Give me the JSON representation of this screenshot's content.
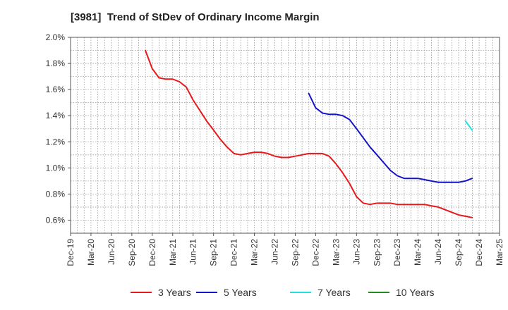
{
  "chart_data": {
    "type": "line",
    "title": "[3981]  Trend of StDev of Ordinary Income Margin",
    "xlabel": "",
    "ylabel": "",
    "categories": [
      "Dec-19",
      "Mar-20",
      "Jun-20",
      "Sep-20",
      "Dec-20",
      "Mar-21",
      "Jun-21",
      "Sep-21",
      "Dec-21",
      "Mar-22",
      "Jun-22",
      "Sep-22",
      "Dec-22",
      "Mar-23",
      "Jun-23",
      "Sep-23",
      "Dec-23",
      "Mar-24",
      "Jun-24",
      "Sep-24",
      "Dec-24",
      "Mar-25"
    ],
    "ylim": [
      0.5,
      2.0
    ],
    "yticks": [
      0.6,
      0.8,
      1.0,
      1.2,
      1.4,
      1.6,
      1.8,
      2.0
    ],
    "ytick_labels": [
      "0.6%",
      "0.8%",
      "1.0%",
      "1.2%",
      "1.4%",
      "1.6%",
      "1.8%",
      "2.0%"
    ],
    "grid": true,
    "legend_position": "bottom",
    "series": [
      {
        "name": "3 Years",
        "color": "#e8191c",
        "points": [
          [
            3.66,
            1.9
          ],
          [
            4.0,
            1.76
          ],
          [
            4.33,
            1.69
          ],
          [
            4.66,
            1.68
          ],
          [
            5.0,
            1.68
          ],
          [
            5.33,
            1.66
          ],
          [
            5.66,
            1.62
          ],
          [
            6.0,
            1.52
          ],
          [
            6.33,
            1.44
          ],
          [
            6.66,
            1.36
          ],
          [
            7.0,
            1.29
          ],
          [
            7.33,
            1.22
          ],
          [
            7.66,
            1.16
          ],
          [
            8.0,
            1.11
          ],
          [
            8.33,
            1.1
          ],
          [
            8.66,
            1.11
          ],
          [
            9.0,
            1.12
          ],
          [
            9.33,
            1.12
          ],
          [
            9.66,
            1.11
          ],
          [
            10.0,
            1.09
          ],
          [
            10.33,
            1.08
          ],
          [
            10.66,
            1.08
          ],
          [
            11.0,
            1.09
          ],
          [
            11.33,
            1.1
          ],
          [
            11.66,
            1.11
          ],
          [
            12.0,
            1.11
          ],
          [
            12.33,
            1.11
          ],
          [
            12.66,
            1.09
          ],
          [
            13.0,
            1.03
          ],
          [
            13.33,
            0.96
          ],
          [
            13.66,
            0.88
          ],
          [
            14.0,
            0.78
          ],
          [
            14.33,
            0.73
          ],
          [
            14.66,
            0.72
          ],
          [
            15.0,
            0.73
          ],
          [
            15.33,
            0.73
          ],
          [
            15.66,
            0.73
          ],
          [
            16.0,
            0.72
          ],
          [
            16.33,
            0.72
          ],
          [
            16.66,
            0.72
          ],
          [
            17.0,
            0.72
          ],
          [
            17.33,
            0.72
          ],
          [
            17.66,
            0.71
          ],
          [
            18.0,
            0.7
          ],
          [
            18.33,
            0.68
          ],
          [
            18.66,
            0.66
          ],
          [
            19.0,
            0.64
          ],
          [
            19.33,
            0.63
          ],
          [
            19.66,
            0.62
          ]
        ]
      },
      {
        "name": "5 Years",
        "color": "#1414c8",
        "points": [
          [
            11.66,
            1.57
          ],
          [
            12.0,
            1.46
          ],
          [
            12.33,
            1.42
          ],
          [
            12.66,
            1.41
          ],
          [
            13.0,
            1.41
          ],
          [
            13.33,
            1.4
          ],
          [
            13.66,
            1.37
          ],
          [
            14.0,
            1.3
          ],
          [
            14.33,
            1.23
          ],
          [
            14.66,
            1.16
          ],
          [
            15.0,
            1.1
          ],
          [
            15.33,
            1.04
          ],
          [
            15.66,
            0.98
          ],
          [
            16.0,
            0.94
          ],
          [
            16.33,
            0.92
          ],
          [
            16.66,
            0.92
          ],
          [
            17.0,
            0.92
          ],
          [
            17.33,
            0.91
          ],
          [
            17.66,
            0.9
          ],
          [
            18.0,
            0.89
          ],
          [
            18.33,
            0.89
          ],
          [
            18.66,
            0.89
          ],
          [
            19.0,
            0.89
          ],
          [
            19.33,
            0.9
          ],
          [
            19.66,
            0.92
          ]
        ]
      },
      {
        "name": "7 Years",
        "color": "#22e0e0",
        "points": [
          [
            19.33,
            1.36
          ],
          [
            19.66,
            1.29
          ]
        ]
      },
      {
        "name": "10 Years",
        "color": "#228b22",
        "points": []
      }
    ]
  }
}
